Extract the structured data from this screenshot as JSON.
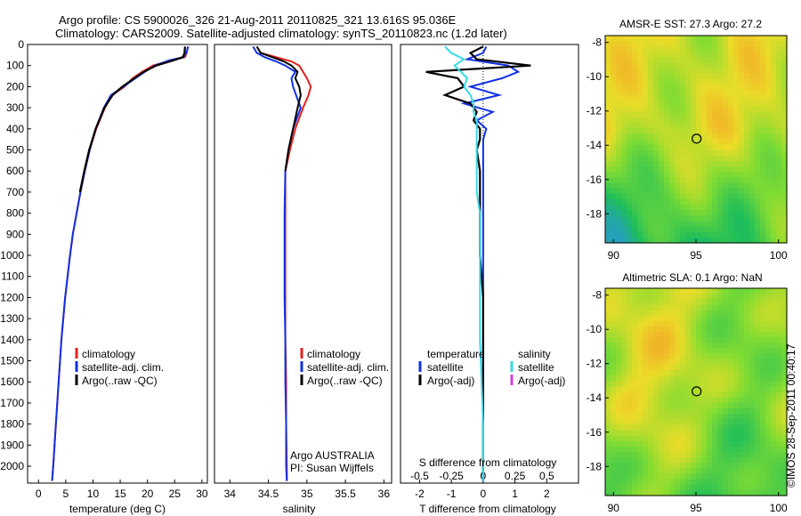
{
  "header": {
    "line1": "Argo profile: CS 5900026_326 21-Aug-2011 20110825_321 13.616S 95.036E",
    "line2": "Climatology: CARS2009. Satellite-adjusted climatology: synTS_20110823.nc (1.2d later)"
  },
  "side_label": "©IMOS 28-Sep-2011 00:40:17",
  "colors": {
    "climatology": "#e8201e",
    "satellite": "#1030e6",
    "argo": "#000000",
    "sat_salinity": "#36d8e8",
    "argo_adj_salinity": "#d040d0"
  },
  "panels": {
    "temperature": {
      "xlabel": "temperature (deg C)",
      "legend": [
        "climatology",
        "satellite-adj. clim.",
        "Argo(..raw -QC)"
      ]
    },
    "salinity": {
      "xlabel": "salinity",
      "legend": [
        "climatology",
        "satellite-adj. clim.",
        "Argo(..raw -QC)"
      ],
      "note1": "Argo AUSTRALIA",
      "note2": "PI: Susan Wijffels"
    },
    "difference": {
      "xlabel_top": "S difference from climatology",
      "xlabel": "T difference from climatology",
      "legend_temp_title": "temperature",
      "legend_sal_title": "salinity",
      "legend_items": [
        "satellite",
        "Argo(-adj)",
        "satellite",
        "Argo(-adj)"
      ]
    },
    "sst_map": {
      "title": "AMSR-E SST: 27.3 Argo: 27.2"
    },
    "sla_map": {
      "title": "Altimetric SLA: 0.1 Argo: NaN"
    }
  },
  "chart_data": [
    {
      "type": "line",
      "name": "temperature",
      "xlim": [
        -2,
        31
      ],
      "ylim": [
        0,
        2080
      ],
      "xticks": [
        0,
        5,
        10,
        15,
        20,
        25,
        30
      ],
      "yticks": [
        0,
        100,
        200,
        300,
        400,
        500,
        600,
        700,
        800,
        900,
        1000,
        1100,
        1200,
        1300,
        1400,
        1500,
        1600,
        1700,
        1800,
        1900,
        2000
      ],
      "depth": [
        10,
        40,
        60,
        75,
        100,
        130,
        160,
        200,
        240,
        300,
        400,
        500,
        600,
        700,
        800,
        900,
        1000,
        1200,
        1400,
        1600,
        1800,
        2000,
        2070
      ],
      "series": [
        {
          "name": "climatology",
          "values": [
            27.4,
            27.2,
            26.9,
            24.5,
            21.0,
            19.0,
            17.3,
            15.8,
            13.5,
            12.2,
            10.6,
            9.4,
            8.5,
            7.7,
            7.0,
            6.3,
            5.8,
            4.9,
            4.2,
            3.7,
            3.2,
            2.7,
            2.5
          ]
        },
        {
          "name": "satellite-adj. clim.",
          "values": [
            27.5,
            27.1,
            26.6,
            24.0,
            21.4,
            19.5,
            17.8,
            15.6,
            13.3,
            12.0,
            10.5,
            9.4,
            8.5,
            7.7,
            7.0,
            6.3,
            5.8,
            4.9,
            4.2,
            3.7,
            3.2,
            2.7,
            2.5
          ]
        },
        {
          "name": "Argo(..raw -QC)",
          "values": [
            26.9,
            26.8,
            26.5,
            24.8,
            21.6,
            19.3,
            17.6,
            15.4,
            13.6,
            12.1,
            10.5,
            9.3,
            8.4,
            7.6
          ]
        }
      ]
    },
    {
      "type": "line",
      "name": "salinity",
      "xlim": [
        33.8,
        36.1
      ],
      "ylim": [
        0,
        2080
      ],
      "xticks": [
        34,
        34.5,
        35,
        35.5,
        36
      ],
      "depth": [
        10,
        40,
        60,
        80,
        100,
        130,
        160,
        200,
        240,
        300,
        400,
        500,
        600,
        800,
        1000,
        1200,
        1400,
        1600,
        1800,
        2000,
        2070
      ],
      "series": [
        {
          "name": "climatology",
          "values": [
            34.35,
            34.4,
            34.6,
            34.8,
            34.9,
            34.95,
            35.0,
            35.05,
            35.02,
            34.95,
            34.85,
            34.78,
            34.72,
            34.72,
            34.72,
            34.72,
            34.72,
            34.73,
            34.73,
            34.74,
            34.74
          ]
        },
        {
          "name": "satellite-adj. clim.",
          "values": [
            34.3,
            34.35,
            34.45,
            34.6,
            34.72,
            34.85,
            34.8,
            34.82,
            34.86,
            34.92,
            34.82,
            34.76,
            34.72,
            34.71,
            34.71,
            34.71,
            34.72,
            34.72,
            34.73,
            34.73,
            34.74
          ]
        },
        {
          "name": "Argo(..raw -QC)",
          "values": [
            34.35,
            34.4,
            34.55,
            34.7,
            34.8,
            34.88,
            34.85,
            34.9,
            34.92,
            34.88,
            34.82,
            34.76,
            34.72
          ]
        }
      ]
    },
    {
      "type": "line",
      "name": "difference",
      "xlim": [
        -2.6,
        3.0
      ],
      "ylim": [
        0,
        2080
      ],
      "xticks_T": [
        -2,
        -1,
        0,
        1,
        2
      ],
      "xticks_S": [
        -0.5,
        -0.25,
        0,
        0.25,
        0.5
      ],
      "depth": [
        10,
        40,
        70,
        100,
        130,
        160,
        200,
        240,
        280,
        320,
        360,
        400,
        450,
        500,
        600,
        700,
        800,
        900,
        1000,
        1200,
        1400,
        1600,
        1800,
        2000,
        2070
      ],
      "series": [
        {
          "name": "satellite (temperature)",
          "values": [
            0.1,
            0.0,
            -0.5,
            0.8,
            1.1,
            0.6,
            -0.4,
            0.5,
            -0.6,
            0.3,
            -0.2,
            0.1,
            0.0,
            0.0,
            0.0,
            0.0,
            0.0,
            0.0,
            0.0,
            0.0,
            0.0,
            0.0,
            0.0,
            0.0,
            0.0
          ]
        },
        {
          "name": "Argo(-adj) (temperature)",
          "values": [
            0.0,
            -0.4,
            -0.2,
            1.5,
            -1.8,
            -0.8,
            -0.6,
            -1.2,
            -0.4,
            -0.2,
            -0.3,
            -0.1,
            -0.1,
            -0.2,
            -0.1,
            -0.1,
            -0.1,
            -0.1,
            -0.1,
            0.0,
            0.0,
            0.0,
            0.0,
            0.0,
            0.0
          ]
        },
        {
          "name": "satellite (salinity)",
          "values": [
            -1.2,
            -1.0,
            -0.6,
            -0.9,
            -0.7,
            -0.5,
            -0.6,
            -0.4,
            -0.3,
            -0.3,
            -0.2,
            -0.2,
            -0.2,
            -0.2,
            -0.2,
            -0.2,
            -0.1,
            -0.1,
            -0.1,
            -0.1,
            -0.1,
            -0.05,
            0.0,
            0.0,
            0.0
          ]
        }
      ]
    },
    {
      "type": "heatmap",
      "name": "sst_map",
      "xlim": [
        89.5,
        100.5
      ],
      "ylim": [
        -19.7,
        -7.6
      ],
      "xticks": [
        90,
        95,
        100
      ],
      "yticks": [
        -8,
        -10,
        -12,
        -14,
        -16,
        -18
      ],
      "argo_position": [
        95.036,
        -13.616
      ]
    },
    {
      "type": "heatmap",
      "name": "sla_map",
      "xlim": [
        89.5,
        100.5
      ],
      "ylim": [
        -19.7,
        -7.6
      ],
      "xticks": [
        90,
        95,
        100
      ],
      "yticks": [
        -8,
        -10,
        -12,
        -14,
        -16,
        -18
      ],
      "argo_position": [
        95.036,
        -13.616
      ]
    }
  ]
}
